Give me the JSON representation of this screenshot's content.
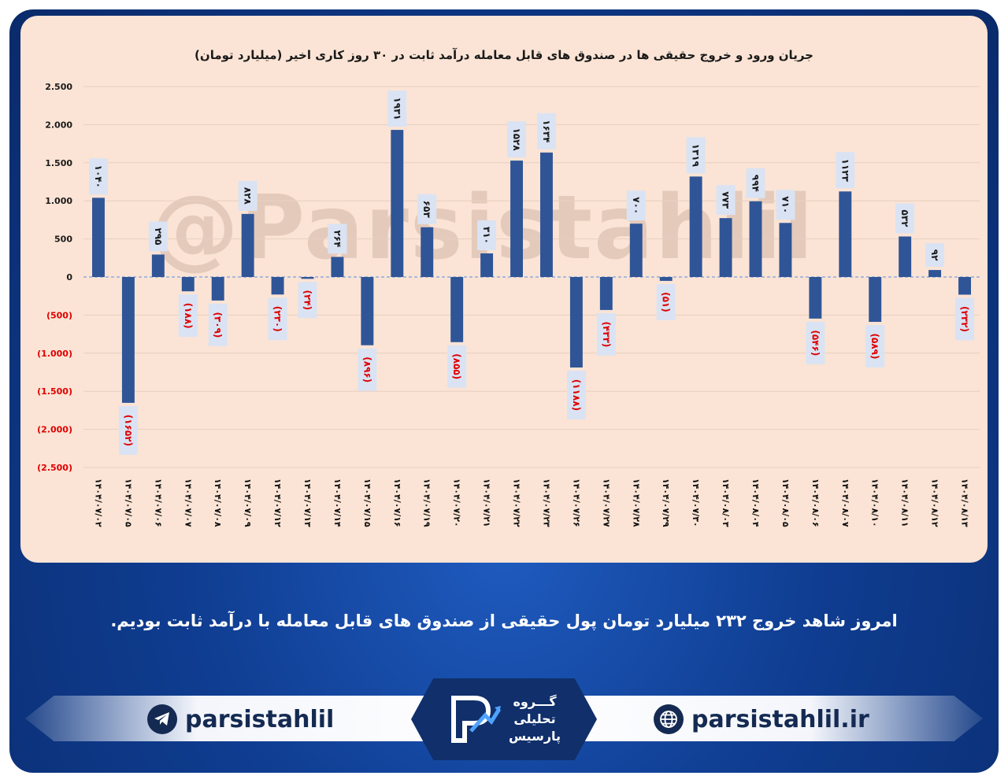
{
  "chart_data": {
    "type": "bar",
    "title": "جریان ورود و خروج حقیقی ها در صندوق های قابل معامله درآمد ثابت در ۳۰ روز کاری اخیر (میلیارد تومان)",
    "categories": [
      "۱۴۰۴/۰۷/۰۲",
      "۱۴۰۴/۰۷/۰۵",
      "۱۴۰۴/۰۷/۰۶",
      "۱۴۰۴/۰۷/۰۷",
      "۱۴۰۴/۰۷/۰۸",
      "۱۴۰۴/۰۷/۰۹",
      "۱۴۰۴/۰۷/۱۲",
      "۱۴۰۴/۰۷/۱۳",
      "۱۴۰۴/۰۷/۱۴",
      "۱۴۰۴/۰۷/۱۵",
      "۱۴۰۴/۰۷/۱۶",
      "۱۴۰۴/۰۷/۱۹",
      "۱۴۰۴/۰۷/۲۰",
      "۱۴۰۴/۰۷/۲۱",
      "۱۴۰۴/۰۷/۲۲",
      "۱۴۰۴/۰۷/۲۳",
      "۱۴۰۴/۰۷/۲۶",
      "۱۴۰۴/۰۷/۲۷",
      "۱۴۰۴/۰۷/۲۸",
      "۱۴۰۴/۰۷/۲۹",
      "۱۴۰۴/۰۷/۳۰",
      "۱۴۰۴/۰۸/۰۳",
      "۱۴۰۴/۰۸/۰۴",
      "۱۴۰۴/۰۸/۰۵",
      "۱۴۰۴/۰۸/۰۶",
      "۱۴۰۴/۰۸/۰۷",
      "۱۴۰۴/۰۸/۱۰",
      "۱۴۰۴/۰۸/۱۱",
      "۱۴۰۴/۰۸/۱۲",
      "۱۴۰۴/۰۸/۱۳"
    ],
    "values": [
      1040,
      -1652,
      295,
      -188,
      -309,
      828,
      -230,
      -24,
      264,
      -896,
      1931,
      653,
      -855,
      310,
      1528,
      1634,
      -1188,
      -433,
      700,
      -51,
      1319,
      773,
      994,
      710,
      -546,
      1123,
      -589,
      532,
      92,
      -232
    ],
    "data_labels": [
      "۱۰۴۰",
      "(۱۶۵۲)",
      "۲۹۵",
      "(۱۸۸)",
      "(۳۰۹)",
      "۸۲۸",
      "(۲۳۰)",
      "(۲۴)",
      "۲۶۴",
      "(۸۹۶)",
      "۱۹۳۱",
      "۶۵۳",
      "(۸۵۵)",
      "۳۱۰",
      "۱۵۲۸",
      "۱۶۳۴",
      "(۱۱۸۸)",
      "(۴۳۳)",
      "۷۰۰",
      "(۵۱)",
      "۱۳۱۹",
      "۷۷۳",
      "۹۹۴",
      "۷۱۰",
      "(۵۴۶)",
      "۱۱۲۳",
      "(۵۸۹)",
      "۵۳۲",
      "۹۲",
      "(۲۳۲)"
    ],
    "ylim": [
      -2500,
      2500
    ],
    "y_ticks": [
      2500,
      2000,
      1500,
      1000,
      500,
      0,
      -500,
      -1000,
      -1500,
      -2000,
      -2500
    ],
    "y_tick_labels": [
      "2.500",
      "2.000",
      "1.500",
      "1.000",
      "500",
      "0",
      "(500)",
      "(1.000)",
      "(1.500)",
      "(2.000)",
      "(2.500)"
    ],
    "grid": true,
    "bar_color": "#2f5597",
    "negative_label_color": "#e00000",
    "positive_label_color": "#1a1a1a"
  },
  "watermark": "@Parsistahlil",
  "note": "امروز شاهد خروج ۲۳۲ میلیارد تومان پول حقیقی از صندوق های قابل معامله با درآمد ثابت بودیم.",
  "footer": {
    "telegram_handle": "parsistahlil",
    "website": "parsistahlil.ir",
    "logo_line1": "گـــروه",
    "logo_line2": "تحلیلی",
    "logo_line3": "پارسیس",
    "telegram_icon": "telegram-icon",
    "web_icon": "globe-icon"
  },
  "colors": {
    "panel_bg": "#fbe4d5",
    "frame_bg": "#0f3d91",
    "label_box_bg": "#dae3f3"
  }
}
